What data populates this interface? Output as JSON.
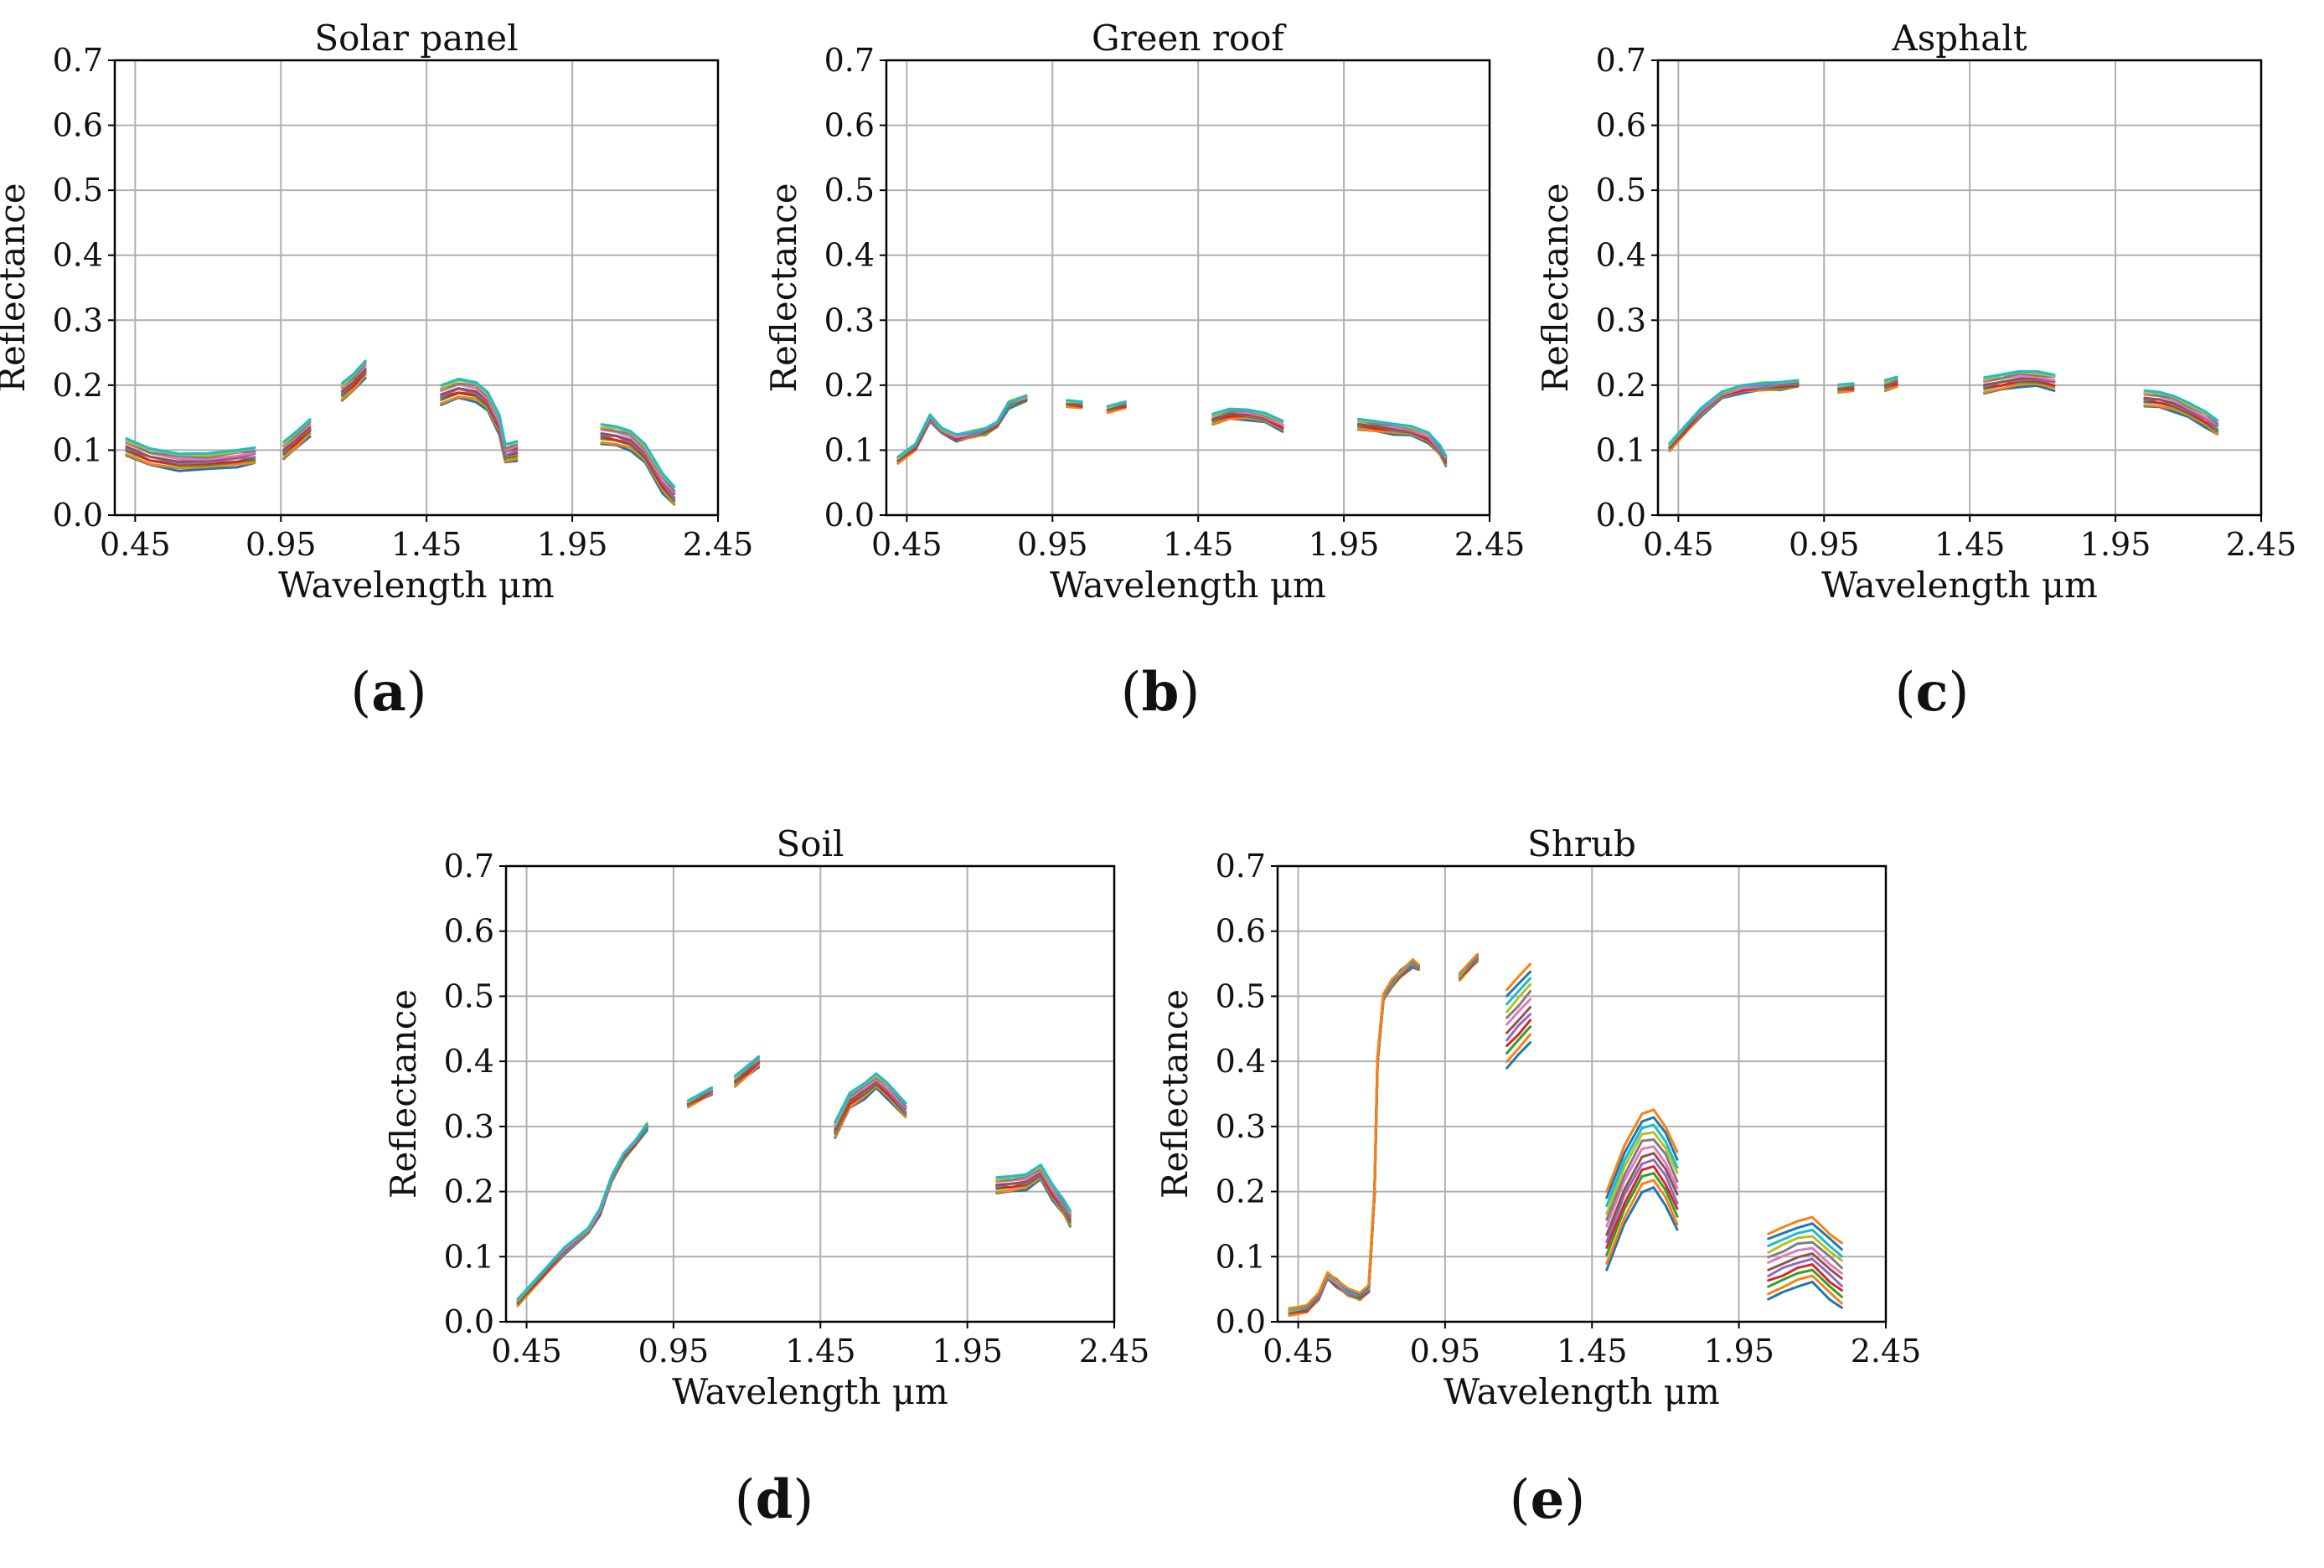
{
  "figure": {
    "palette": [
      "#1f77b4",
      "#ff7f0e",
      "#2ca02c",
      "#d62728",
      "#9467bd",
      "#8c564b",
      "#e377c2",
      "#7f7f7f",
      "#bcbd22",
      "#17becf"
    ],
    "grid_color": "#b0b0b0",
    "axis_color": "#000000"
  },
  "chart_data": [
    {
      "type": "line",
      "panel_label": "a",
      "title": "Solar panel",
      "xlabel": "Wavelength  μm",
      "ylabel": "Reflectance",
      "xlim": [
        0.38,
        2.45
      ],
      "ylim": [
        0.0,
        0.7
      ],
      "xticks": [
        0.45,
        0.95,
        1.45,
        1.95,
        2.45
      ],
      "xtick_labels": [
        "0.45",
        "0.95",
        "1.45",
        "1.95",
        "2.45"
      ],
      "yticks": [
        0.0,
        0.1,
        0.2,
        0.3,
        0.4,
        0.5,
        0.6,
        0.7
      ],
      "ytick_labels": [
        "0.0",
        "0.1",
        "0.2",
        "0.3",
        "0.4",
        "0.5",
        "0.6",
        "0.7"
      ],
      "grid": true,
      "n_curves": 10,
      "curve_spread": [
        0.013,
        0.013,
        0.015,
        0.015
      ],
      "segments": [
        {
          "x": [
            0.42,
            0.5,
            0.6,
            0.7,
            0.8,
            0.86
          ],
          "y": [
            0.105,
            0.09,
            0.082,
            0.083,
            0.088,
            0.092
          ]
        },
        {
          "x": [
            0.96,
            1.0,
            1.05
          ],
          "y": [
            0.1,
            0.115,
            0.135
          ]
        },
        {
          "x": [
            1.16,
            1.2,
            1.24
          ],
          "y": [
            0.19,
            0.205,
            0.225
          ]
        },
        {
          "x": [
            1.5,
            1.56,
            1.62,
            1.66,
            1.7,
            1.72,
            1.76
          ],
          "y": [
            0.185,
            0.195,
            0.19,
            0.175,
            0.14,
            0.095,
            0.1
          ]
        },
        {
          "x": [
            2.05,
            2.1,
            2.15,
            2.2,
            2.26,
            2.3
          ],
          "y": [
            0.125,
            0.122,
            0.115,
            0.095,
            0.05,
            0.03
          ]
        }
      ]
    },
    {
      "type": "line",
      "panel_label": "b",
      "title": "Green roof",
      "xlabel": "Wavelength  μm",
      "ylabel": "Reflectance",
      "xlim": [
        0.38,
        2.45
      ],
      "ylim": [
        0.0,
        0.7
      ],
      "xticks": [
        0.45,
        0.95,
        1.45,
        1.95,
        2.45
      ],
      "xtick_labels": [
        "0.45",
        "0.95",
        "1.45",
        "1.95",
        "2.45"
      ],
      "yticks": [
        0.0,
        0.1,
        0.2,
        0.3,
        0.4,
        0.5,
        0.6,
        0.7
      ],
      "ytick_labels": [
        "0.0",
        "0.1",
        "0.2",
        "0.3",
        "0.4",
        "0.5",
        "0.6",
        "0.7"
      ],
      "grid": true,
      "n_curves": 10,
      "curve_spread": [
        0.005,
        0.005,
        0.008,
        0.008
      ],
      "segments": [
        {
          "x": [
            0.42,
            0.48,
            0.53,
            0.57,
            0.62,
            0.68,
            0.72,
            0.76,
            0.8,
            0.86
          ],
          "y": [
            0.085,
            0.105,
            0.15,
            0.13,
            0.12,
            0.125,
            0.13,
            0.14,
            0.17,
            0.18
          ]
        },
        {
          "x": [
            1.0,
            1.05
          ],
          "y": [
            0.172,
            0.17
          ]
        },
        {
          "x": [
            1.14,
            1.2
          ],
          "y": [
            0.163,
            0.17
          ]
        },
        {
          "x": [
            1.5,
            1.56,
            1.62,
            1.68,
            1.74
          ],
          "y": [
            0.148,
            0.156,
            0.155,
            0.15,
            0.138
          ]
        },
        {
          "x": [
            2.0,
            2.06,
            2.12,
            2.18,
            2.24,
            2.28,
            2.3
          ],
          "y": [
            0.14,
            0.137,
            0.133,
            0.13,
            0.12,
            0.1,
            0.085
          ]
        }
      ]
    },
    {
      "type": "line",
      "panel_label": "c",
      "title": "Asphalt",
      "xlabel": "Wavelength  μm",
      "ylabel": "Reflectance",
      "xlim": [
        0.38,
        2.45
      ],
      "ylim": [
        0.0,
        0.7
      ],
      "xticks": [
        0.45,
        0.95,
        1.45,
        1.95,
        2.45
      ],
      "xtick_labels": [
        "0.45",
        "0.95",
        "1.45",
        "1.95",
        "2.45"
      ],
      "yticks": [
        0.0,
        0.1,
        0.2,
        0.3,
        0.4,
        0.5,
        0.6,
        0.7
      ],
      "ytick_labels": [
        "0.0",
        "0.1",
        "0.2",
        "0.3",
        "0.4",
        "0.5",
        "0.6",
        "0.7"
      ],
      "grid": true,
      "n_curves": 10,
      "curve_spread": [
        0.006,
        0.008,
        0.012,
        0.012
      ],
      "segments": [
        {
          "x": [
            0.42,
            0.47,
            0.53,
            0.6,
            0.67,
            0.74,
            0.8,
            0.86
          ],
          "y": [
            0.105,
            0.13,
            0.16,
            0.185,
            0.195,
            0.198,
            0.2,
            0.203
          ]
        },
        {
          "x": [
            1.0,
            1.05
          ],
          "y": [
            0.195,
            0.197
          ]
        },
        {
          "x": [
            1.16,
            1.2
          ],
          "y": [
            0.2,
            0.205
          ]
        },
        {
          "x": [
            1.5,
            1.56,
            1.62,
            1.68,
            1.74
          ],
          "y": [
            0.2,
            0.205,
            0.21,
            0.21,
            0.205
          ]
        },
        {
          "x": [
            2.05,
            2.1,
            2.15,
            2.2,
            2.26,
            2.3
          ],
          "y": [
            0.18,
            0.178,
            0.172,
            0.162,
            0.148,
            0.135
          ]
        }
      ]
    },
    {
      "type": "line",
      "panel_label": "d",
      "title": "Soil",
      "xlabel": "Wavelength  μm",
      "ylabel": "Reflectance",
      "xlim": [
        0.38,
        2.45
      ],
      "ylim": [
        0.0,
        0.7
      ],
      "xticks": [
        0.45,
        0.95,
        1.45,
        1.95,
        2.45
      ],
      "xtick_labels": [
        "0.45",
        "0.95",
        "1.45",
        "1.95",
        "2.45"
      ],
      "yticks": [
        0.0,
        0.1,
        0.2,
        0.3,
        0.4,
        0.5,
        0.6,
        0.7
      ],
      "ytick_labels": [
        "0.0",
        "0.1",
        "0.2",
        "0.3",
        "0.4",
        "0.5",
        "0.6",
        "0.7"
      ],
      "grid": true,
      "n_curves": 10,
      "curve_spread": [
        0.005,
        0.008,
        0.012,
        0.012
      ],
      "segments": [
        {
          "x": [
            0.42,
            0.5,
            0.58,
            0.66,
            0.7,
            0.74,
            0.78,
            0.82,
            0.86
          ],
          "y": [
            0.03,
            0.07,
            0.11,
            0.14,
            0.17,
            0.22,
            0.255,
            0.275,
            0.3
          ]
        },
        {
          "x": [
            1.0,
            1.04,
            1.08
          ],
          "y": [
            0.335,
            0.345,
            0.355
          ]
        },
        {
          "x": [
            1.16,
            1.2,
            1.24
          ],
          "y": [
            0.37,
            0.385,
            0.4
          ]
        },
        {
          "x": [
            1.5,
            1.55,
            1.6,
            1.64,
            1.68,
            1.74
          ],
          "y": [
            0.295,
            0.34,
            0.355,
            0.37,
            0.355,
            0.325
          ]
        },
        {
          "x": [
            2.05,
            2.1,
            2.15,
            2.2,
            2.24,
            2.28,
            2.3
          ],
          "y": [
            0.21,
            0.212,
            0.215,
            0.23,
            0.2,
            0.175,
            0.16
          ]
        }
      ]
    },
    {
      "type": "line",
      "panel_label": "e",
      "title": "Shrub",
      "xlabel": "Wavelength  μm",
      "ylabel": "Reflectance",
      "xlim": [
        0.38,
        2.45
      ],
      "ylim": [
        0.0,
        0.7
      ],
      "xticks": [
        0.45,
        0.95,
        1.45,
        1.95,
        2.45
      ],
      "xtick_labels": [
        "0.45",
        "0.95",
        "1.45",
        "1.95",
        "2.45"
      ],
      "yticks": [
        0.0,
        0.1,
        0.2,
        0.3,
        0.4,
        0.5,
        0.6,
        0.7
      ],
      "ytick_labels": [
        "0.0",
        "0.1",
        "0.2",
        "0.3",
        "0.4",
        "0.5",
        "0.6",
        "0.7"
      ],
      "grid": true,
      "n_curves": 12,
      "curve_spread": [
        0.005,
        0.06,
        0.06,
        0.05
      ],
      "segments": [
        {
          "x": [
            0.42,
            0.48,
            0.52,
            0.55,
            0.58,
            0.62,
            0.66,
            0.69,
            0.71,
            0.72,
            0.74,
            0.77,
            0.8,
            0.84,
            0.86
          ],
          "y": [
            0.015,
            0.02,
            0.04,
            0.07,
            0.06,
            0.045,
            0.04,
            0.05,
            0.2,
            0.4,
            0.5,
            0.52,
            0.535,
            0.55,
            0.545
          ]
        },
        {
          "x": [
            1.0,
            1.03,
            1.06
          ],
          "y": [
            0.53,
            0.545,
            0.56
          ]
        },
        {
          "x": [
            1.16,
            1.2,
            1.24
          ],
          "y": [
            0.45,
            0.47,
            0.49
          ]
        },
        {
          "x": [
            1.5,
            1.56,
            1.62,
            1.66,
            1.7,
            1.74
          ],
          "y": [
            0.14,
            0.21,
            0.26,
            0.265,
            0.24,
            0.2
          ]
        },
        {
          "x": [
            2.05,
            2.1,
            2.15,
            2.2,
            2.26,
            2.3
          ],
          "y": [
            0.085,
            0.095,
            0.105,
            0.11,
            0.085,
            0.07
          ]
        }
      ]
    }
  ]
}
